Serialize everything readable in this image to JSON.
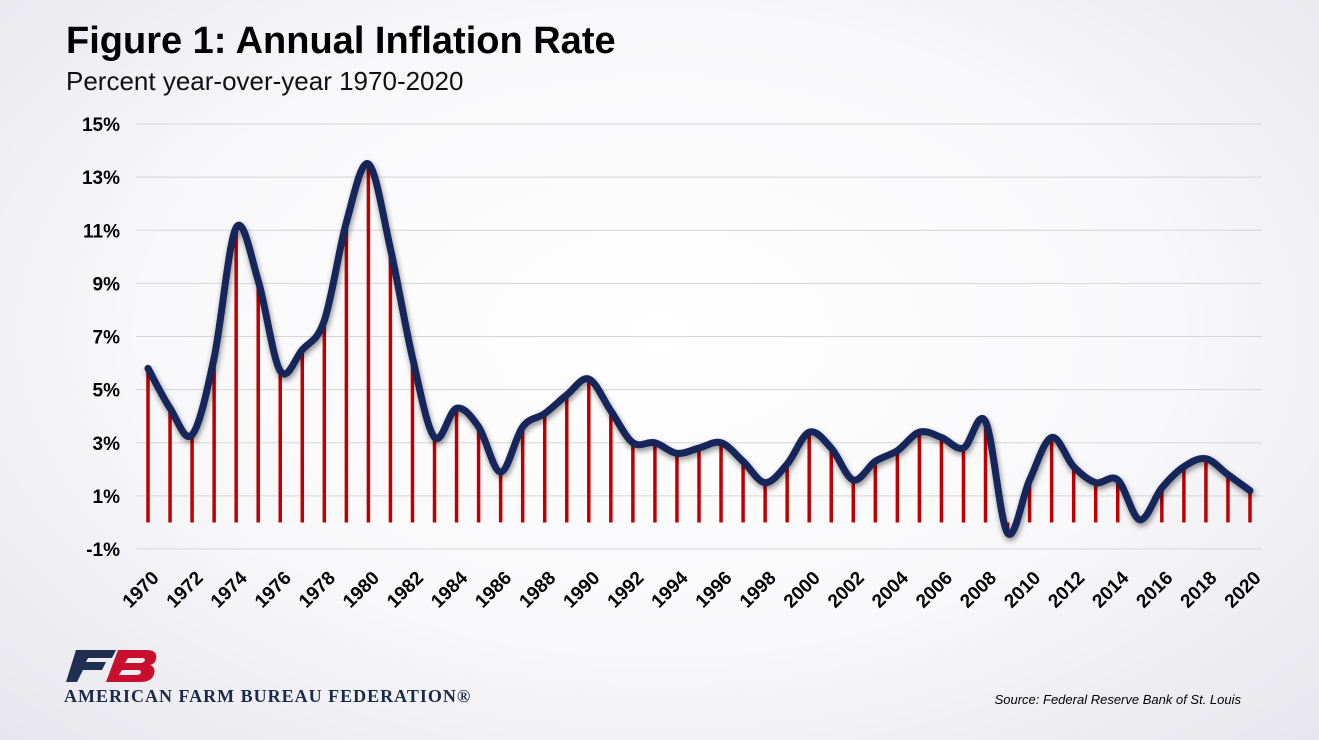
{
  "chart_data": {
    "type": "line",
    "title": "Figure 1: Annual Inflation Rate",
    "subtitle": "Percent year-over-year 1970-2020",
    "ylim": [
      -1,
      15
    ],
    "yticks": [
      "15%",
      "13%",
      "11%",
      "9%",
      "7%",
      "5%",
      "3%",
      "1%",
      "-1%"
    ],
    "ytick_values": [
      15,
      13,
      11,
      9,
      7,
      5,
      3,
      1,
      -1
    ],
    "xtick_labels": [
      "1970",
      "1972",
      "1974",
      "1976",
      "1978",
      "1980",
      "1982",
      "1984",
      "1986",
      "1988",
      "1990",
      "1992",
      "1994",
      "1996",
      "1998",
      "2000",
      "2002",
      "2004",
      "2006",
      "2008",
      "2010",
      "2012",
      "2014",
      "2016",
      "2018",
      "2020"
    ],
    "grid": true,
    "x": [
      1970,
      1971,
      1972,
      1973,
      1974,
      1975,
      1976,
      1977,
      1978,
      1979,
      1980,
      1981,
      1982,
      1983,
      1984,
      1985,
      1986,
      1987,
      1988,
      1989,
      1990,
      1991,
      1992,
      1993,
      1994,
      1995,
      1996,
      1997,
      1998,
      1999,
      2000,
      2001,
      2002,
      2003,
      2004,
      2005,
      2006,
      2007,
      2008,
      2009,
      2010,
      2011,
      2012,
      2013,
      2014,
      2015,
      2016,
      2017,
      2018,
      2019,
      2020
    ],
    "series": [
      {
        "values": [
          5.8,
          4.3,
          3.3,
          6.2,
          11.1,
          9.1,
          5.7,
          6.5,
          7.6,
          11.3,
          13.5,
          10.3,
          6.2,
          3.2,
          4.3,
          3.6,
          1.9,
          3.6,
          4.1,
          4.8,
          5.4,
          4.2,
          3.0,
          3.0,
          2.6,
          2.8,
          3.0,
          2.3,
          1.5,
          2.2,
          3.4,
          2.8,
          1.6,
          2.3,
          2.7,
          3.4,
          3.2,
          2.8,
          3.8,
          -0.4,
          1.6,
          3.2,
          2.1,
          1.5,
          1.6,
          0.1,
          1.3,
          2.1,
          2.4,
          1.8,
          1.2
        ]
      }
    ],
    "colors": {
      "line": "#16285a",
      "stems": "#c00000",
      "grid": "#d6d6d6"
    }
  },
  "footer": {
    "logo_text": "AMERICAN FARM BUREAU FEDERATION®",
    "source": "Source: Federal Reserve Bank of St. Louis"
  }
}
